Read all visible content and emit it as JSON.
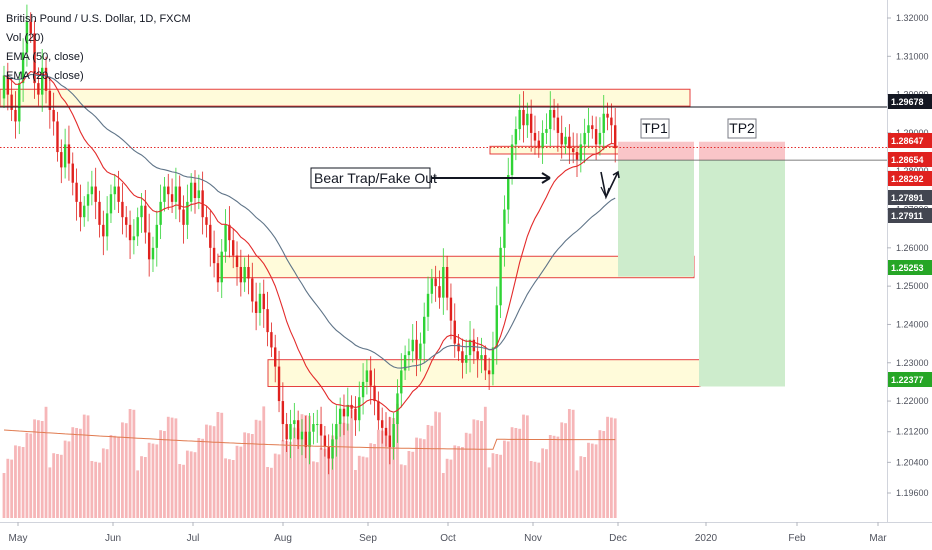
{
  "header": {
    "title": "British Pound / U.S. Dollar, 1D, FXCM",
    "indicators": [
      "Vol (20)",
      "EMA (50, close)",
      "EMA (20, close)"
    ]
  },
  "colors": {
    "up": "#2fd335",
    "down": "#e0211e",
    "ema20": "#e32b2b",
    "ema50": "#5f7488",
    "vol_up": "#f4a9ab",
    "vol_down": "#f4a9ab",
    "vol_ma": "#e07a4f",
    "zone_fill": "#fffbd6",
    "zone_border": "#e32b2b",
    "tp_red": "#f9c5c8",
    "tp_green": "#cdeccc",
    "hline": "#131722",
    "dotted": "#e32b2b"
  },
  "chart_data": {
    "type": "candlestick",
    "symbol": "GBP/USD",
    "timeframe": "1D",
    "ylim": [
      1.1896,
      1.3244
    ],
    "y_ticks": [
      "1.32000",
      "1.31000",
      "1.30000",
      "1.29000",
      "1.28000",
      "1.27000",
      "1.26000",
      "1.25000",
      "1.24000",
      "1.23000",
      "1.22000",
      "1.21200",
      "1.20400",
      "1.19600"
    ],
    "x_ticks": [
      "May",
      "Jun",
      "Jul",
      "Aug",
      "Sep",
      "Oct",
      "Nov",
      "Dec",
      "2020",
      "Feb",
      "Mar"
    ],
    "price_tags": [
      {
        "label": "1.29678",
        "style": "black"
      },
      {
        "label": "1.28647",
        "style": "red"
      },
      {
        "label": "1.28654",
        "style": "red"
      },
      {
        "label": "1.28292",
        "style": "red"
      },
      {
        "label": "1.27891",
        "style": "dark"
      },
      {
        "label": "1.27911",
        "style": "dark"
      },
      {
        "label": "1.25253",
        "style": "green"
      },
      {
        "label": "1.22377",
        "style": "green"
      }
    ],
    "annotations": [
      "Bear Trap/Fake Out",
      "TP1",
      "TP2"
    ],
    "closes": [
      1.305,
      1.3,
      1.296,
      1.293,
      1.303,
      1.311,
      1.319,
      1.316,
      1.303,
      1.3,
      1.307,
      1.301,
      1.296,
      1.293,
      1.285,
      1.281,
      1.287,
      1.282,
      1.277,
      1.272,
      1.268,
      1.271,
      1.274,
      1.276,
      1.272,
      1.266,
      1.263,
      1.269,
      1.274,
      1.276,
      1.272,
      1.268,
      1.266,
      1.262,
      1.263,
      1.268,
      1.271,
      1.264,
      1.257,
      1.26,
      1.266,
      1.272,
      1.276,
      1.274,
      1.272,
      1.276,
      1.27,
      1.266,
      1.272,
      1.277,
      1.273,
      1.275,
      1.268,
      1.266,
      1.26,
      1.256,
      1.251,
      1.259,
      1.266,
      1.262,
      1.258,
      1.255,
      1.251,
      1.255,
      1.252,
      1.246,
      1.243,
      1.248,
      1.244,
      1.238,
      1.234,
      1.229,
      1.22,
      1.214,
      1.21,
      1.214,
      1.215,
      1.21,
      1.212,
      1.208,
      1.212,
      1.214,
      1.214,
      1.211,
      1.208,
      1.205,
      1.21,
      1.214,
      1.218,
      1.216,
      1.219,
      1.218,
      1.215,
      1.221,
      1.225,
      1.228,
      1.224,
      1.22,
      1.215,
      1.213,
      1.211,
      1.208,
      1.214,
      1.222,
      1.228,
      1.232,
      1.233,
      1.236,
      1.231,
      1.235,
      1.242,
      1.248,
      1.252,
      1.25,
      1.247,
      1.255,
      1.247,
      1.241,
      1.235,
      1.233,
      1.23,
      1.232,
      1.236,
      1.233,
      1.231,
      1.232,
      1.228,
      1.227,
      1.234,
      1.245,
      1.26,
      1.27,
      1.279,
      1.287,
      1.291,
      1.296,
      1.292,
      1.295,
      1.29,
      1.288,
      1.286,
      1.29,
      1.291,
      1.296,
      1.294,
      1.29,
      1.287,
      1.289,
      1.286,
      1.285,
      1.283,
      1.287,
      1.29,
      1.292,
      1.291,
      1.287,
      1.29,
      1.295,
      1.294,
      1.292,
      1.286
    ]
  }
}
